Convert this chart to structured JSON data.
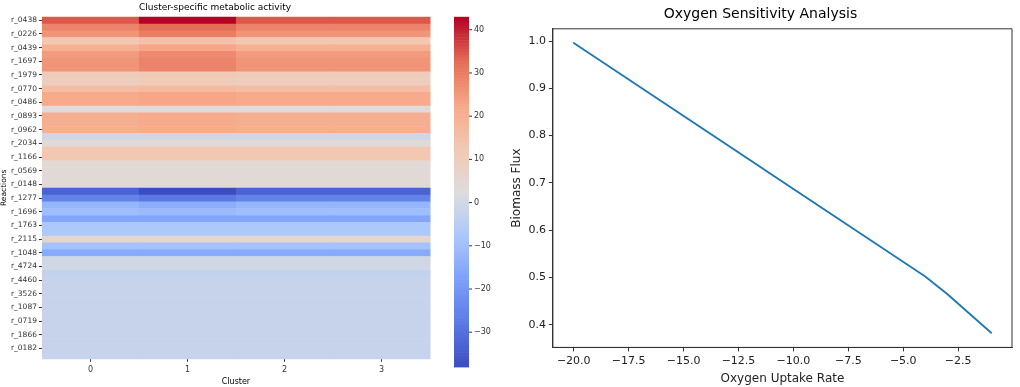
{
  "chart_data": [
    {
      "type": "heatmap",
      "title": "Cluster-specific metabolic activity",
      "xlabel": "Cluster",
      "ylabel": "Reactions",
      "categories": [
        "0",
        "1",
        "2",
        "3"
      ],
      "y_categories": [
        "r_0438",
        null,
        "r_0226",
        null,
        "r_0439",
        null,
        "r_1697",
        null,
        "r_1979",
        null,
        "r_0770",
        null,
        "r_0486",
        null,
        "r_0893",
        null,
        "r_0962",
        null,
        "r_2034",
        null,
        "r_1166",
        null,
        "r_0569",
        null,
        "r_0148",
        null,
        "r_1277",
        null,
        "r_1696",
        null,
        "r_1763",
        null,
        "r_2115",
        null,
        "r_1048",
        null,
        "r_4724",
        null,
        "r_4460",
        null,
        "r_3526",
        null,
        "r_1087",
        null,
        "r_0719",
        null,
        "r_1866",
        null,
        "r_0182",
        null
      ],
      "cells": [
        [
          35,
          43,
          35,
          35
        ],
        [
          29,
          33,
          29,
          29
        ],
        [
          26,
          30,
          26,
          26
        ],
        [
          13,
          15,
          13,
          13
        ],
        [
          20,
          23,
          20,
          20
        ],
        [
          25,
          28,
          25,
          25
        ],
        [
          26,
          29,
          26,
          26
        ],
        [
          26,
          29,
          26,
          26
        ],
        [
          11,
          12,
          11,
          11
        ],
        [
          10,
          11,
          10,
          10
        ],
        [
          16,
          17,
          16,
          16
        ],
        [
          22,
          23,
          22,
          22
        ],
        [
          22,
          23,
          22,
          22
        ],
        [
          3,
          3,
          3,
          3
        ],
        [
          21,
          22,
          21,
          21
        ],
        [
          21,
          22,
          21,
          21
        ],
        [
          21,
          22,
          21,
          21
        ],
        [
          0,
          0,
          0,
          0
        ],
        [
          4,
          4,
          4,
          4
        ],
        [
          13,
          13,
          13,
          13
        ],
        [
          13,
          13,
          13,
          13
        ],
        [
          4,
          4,
          4,
          4
        ],
        [
          4,
          4,
          4,
          4
        ],
        [
          4,
          4,
          4,
          4
        ],
        [
          4,
          4,
          4,
          4
        ],
        [
          -33,
          -38,
          -33,
          -33
        ],
        [
          -25,
          -28,
          -25,
          -25
        ],
        [
          -12,
          -14,
          -12,
          -12
        ],
        [
          -10,
          -11,
          -10,
          -10
        ],
        [
          -16,
          -16,
          -16,
          -16
        ],
        [
          -7,
          -7,
          -7,
          -7
        ],
        [
          -7,
          -7,
          -7,
          -7
        ],
        [
          6,
          6,
          6,
          6
        ],
        [
          -9,
          -9,
          -9,
          -9
        ],
        [
          -15,
          -15,
          -15,
          -15
        ],
        [
          0,
          0,
          0,
          0
        ],
        [
          0,
          0,
          0,
          0
        ],
        [
          -3,
          -3,
          -3,
          -3
        ],
        [
          -2,
          -2,
          -2,
          -2
        ],
        [
          -2,
          -2,
          -2,
          -2
        ],
        [
          -2,
          -2,
          -2,
          -2
        ],
        [
          -2,
          -2,
          -2,
          -2
        ],
        [
          -2,
          -2,
          -2,
          -2
        ],
        [
          -2,
          -2,
          -2,
          -2
        ],
        [
          -2,
          -2,
          -2,
          -2
        ],
        [
          -2,
          -2,
          -2,
          -2
        ],
        [
          -2,
          -2,
          -2,
          -2
        ],
        [
          -2,
          -2,
          -2,
          -2
        ],
        [
          -2,
          -2,
          -2,
          -2
        ],
        [
          -2,
          -2,
          -2,
          -2
        ]
      ],
      "clim": [
        -38,
        43
      ],
      "cticks": [
        {
          "value": -30,
          "label": "−30"
        },
        {
          "value": -20,
          "label": "−20"
        },
        {
          "value": -10,
          "label": "−10"
        },
        0,
        10,
        20,
        30,
        40
      ]
    },
    {
      "type": "line",
      "title": "Oxygen Sensitivity Analysis",
      "xlabel": "Oxygen Uptake Rate",
      "ylabel": "Biomass Flux",
      "x": [
        -20,
        -4,
        -3,
        -1
      ],
      "series": [
        {
          "color": "#1f77b4",
          "values": [
            0.996,
            0.502,
            0.465,
            0.383
          ]
        }
      ],
      "xlim": [
        -20.95,
        -0.05
      ],
      "ylim": [
        0.352,
        1.026
      ],
      "xticks": [
        {
          "value": -20,
          "label": "−20.0"
        },
        {
          "value": -17.5,
          "label": "−17.5"
        },
        {
          "value": -15,
          "label": "−15.0"
        },
        {
          "value": -12.5,
          "label": "−12.5"
        },
        {
          "value": -10,
          "label": "−10.0"
        },
        {
          "value": -7.5,
          "label": "−7.5"
        },
        {
          "value": -5,
          "label": "−5.0"
        },
        {
          "value": -2.5,
          "label": "−2.5"
        }
      ],
      "yticks": [
        0.4,
        0.5,
        0.6,
        0.7,
        0.8,
        0.9,
        {
          "value": 1,
          "label": "1.0"
        }
      ],
      "grid": false,
      "legend": false
    }
  ]
}
